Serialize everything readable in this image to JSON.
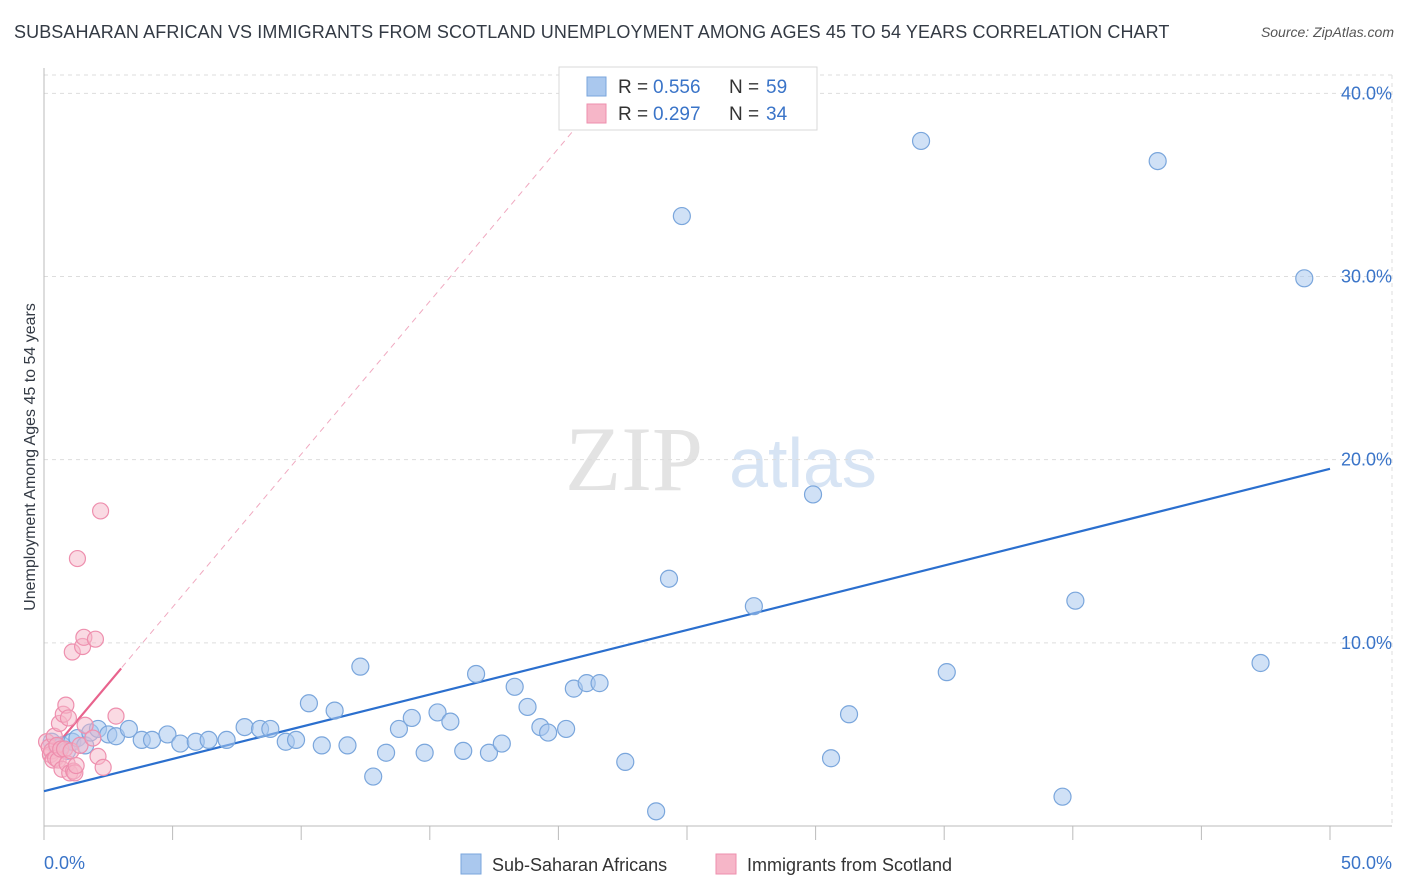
{
  "title": "SUBSAHARAN AFRICAN VS IMMIGRANTS FROM SCOTLAND UNEMPLOYMENT AMONG AGES 45 TO 54 YEARS CORRELATION CHART",
  "source": "Source: ZipAtlas.com",
  "watermark": {
    "zip": "ZIP",
    "atlas": "atlas"
  },
  "legend_top": [
    {
      "r_label": "R = ",
      "r_value": "0.556",
      "n_label": "N = ",
      "n_value": "59"
    },
    {
      "r_label": "R = ",
      "r_value": "0.297",
      "n_label": "N = ",
      "n_value": "34"
    }
  ],
  "colors": {
    "blue_fill": "#aac8ee",
    "blue_stroke": "#7aa6dc",
    "blue_line": "#2b6fce",
    "pink_fill": "#f6b6c8",
    "pink_stroke": "#ee8fae",
    "pink_line": "#e8638d",
    "value_text": "#3a74c8",
    "grid": "#dddddd"
  },
  "chart_data": {
    "type": "scatter",
    "title": "SUBSAHARAN AFRICAN VS IMMIGRANTS FROM SCOTLAND UNEMPLOYMENT AMONG AGES 45 TO 54 YEARS CORRELATION CHART",
    "xlabel": "",
    "ylabel": "Unemployment Among Ages 45 to 54 years",
    "xlim": [
      0,
      50
    ],
    "ylim": [
      0,
      41
    ],
    "x_tick_labels": [
      "0.0%",
      "50.0%"
    ],
    "y_ticks": [
      10,
      20,
      30,
      40
    ],
    "y_tick_labels": [
      "10.0%",
      "20.0%",
      "30.0%",
      "40.0%"
    ],
    "grid": true,
    "legend_position": "top-center",
    "series": [
      {
        "name": "Sub-Saharan Africans",
        "R": 0.556,
        "N": 59,
        "trend": {
          "x0": 0,
          "y0": 1.9,
          "x1": 50,
          "y1": 19.5
        },
        "points": [
          [
            0.3,
            4.6
          ],
          [
            0.5,
            4.3
          ],
          [
            0.7,
            4.4
          ],
          [
            0.9,
            4.1
          ],
          [
            1.1,
            4.6
          ],
          [
            1.3,
            4.8
          ],
          [
            1.6,
            4.4
          ],
          [
            1.8,
            5.1
          ],
          [
            2.1,
            5.3
          ],
          [
            2.5,
            5.0
          ],
          [
            2.8,
            4.9
          ],
          [
            3.3,
            5.3
          ],
          [
            3.8,
            4.7
          ],
          [
            4.2,
            4.7
          ],
          [
            4.8,
            5.0
          ],
          [
            5.3,
            4.5
          ],
          [
            5.9,
            4.6
          ],
          [
            6.4,
            4.7
          ],
          [
            7.1,
            4.7
          ],
          [
            7.8,
            5.4
          ],
          [
            8.4,
            5.3
          ],
          [
            8.8,
            5.3
          ],
          [
            9.4,
            4.6
          ],
          [
            9.8,
            4.7
          ],
          [
            10.3,
            6.7
          ],
          [
            10.8,
            4.4
          ],
          [
            11.3,
            6.3
          ],
          [
            11.8,
            4.4
          ],
          [
            12.3,
            8.7
          ],
          [
            12.8,
            2.7
          ],
          [
            13.3,
            4.0
          ],
          [
            13.8,
            5.3
          ],
          [
            14.3,
            5.9
          ],
          [
            14.8,
            4.0
          ],
          [
            15.3,
            6.2
          ],
          [
            15.8,
            5.7
          ],
          [
            16.3,
            4.1
          ],
          [
            16.8,
            8.3
          ],
          [
            17.3,
            4.0
          ],
          [
            17.8,
            4.5
          ],
          [
            18.3,
            7.6
          ],
          [
            18.8,
            6.5
          ],
          [
            19.3,
            5.4
          ],
          [
            19.6,
            5.1
          ],
          [
            20.3,
            5.3
          ],
          [
            20.6,
            7.5
          ],
          [
            21.1,
            7.8
          ],
          [
            21.6,
            7.8
          ],
          [
            22.6,
            3.5
          ],
          [
            23.8,
            0.8
          ],
          [
            24.3,
            13.5
          ],
          [
            24.8,
            33.3
          ],
          [
            27.6,
            12.0
          ],
          [
            29.9,
            18.1
          ],
          [
            30.6,
            3.7
          ],
          [
            31.3,
            6.1
          ],
          [
            34.1,
            37.4
          ],
          [
            35.1,
            8.4
          ],
          [
            39.6,
            1.6
          ],
          [
            40.1,
            12.3
          ],
          [
            43.3,
            36.3
          ],
          [
            47.3,
            8.9
          ],
          [
            49.0,
            29.9
          ]
        ]
      },
      {
        "name": "Immigrants from Scotland",
        "R": 0.297,
        "N": 34,
        "trend": {
          "x0": 0,
          "y0": 3.6,
          "x1": 3.0,
          "y1": 8.6
        },
        "trend_extended": {
          "x0": 0,
          "y0": 3.6,
          "x1": 22.1,
          "y1": 40.5
        },
        "points": [
          [
            0.1,
            4.6
          ],
          [
            0.2,
            4.3
          ],
          [
            0.25,
            3.9
          ],
          [
            0.3,
            4.1
          ],
          [
            0.35,
            3.6
          ],
          [
            0.4,
            4.9
          ],
          [
            0.45,
            3.7
          ],
          [
            0.5,
            4.4
          ],
          [
            0.55,
            3.6
          ],
          [
            0.6,
            5.6
          ],
          [
            0.65,
            4.2
          ],
          [
            0.7,
            3.1
          ],
          [
            0.75,
            6.1
          ],
          [
            0.8,
            4.2
          ],
          [
            0.85,
            6.6
          ],
          [
            0.9,
            3.4
          ],
          [
            0.95,
            5.9
          ],
          [
            1.0,
            2.9
          ],
          [
            1.05,
            4.1
          ],
          [
            1.1,
            9.5
          ],
          [
            1.15,
            3.0
          ],
          [
            1.2,
            2.9
          ],
          [
            1.25,
            3.3
          ],
          [
            1.3,
            14.6
          ],
          [
            1.4,
            4.4
          ],
          [
            1.5,
            9.8
          ],
          [
            1.55,
            10.3
          ],
          [
            1.6,
            5.5
          ],
          [
            1.9,
            4.8
          ],
          [
            2.0,
            10.2
          ],
          [
            2.1,
            3.8
          ],
          [
            2.2,
            17.2
          ],
          [
            2.3,
            3.2
          ],
          [
            2.8,
            6.0
          ]
        ]
      }
    ]
  },
  "legend_bottom": [
    "Sub-Saharan Africans",
    "Immigrants from Scotland"
  ]
}
